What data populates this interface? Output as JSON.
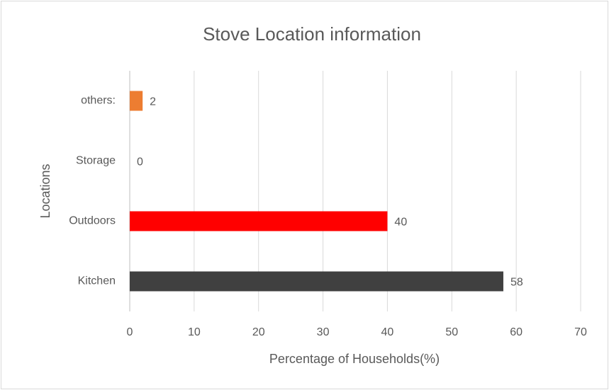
{
  "chart_data": {
    "type": "barh",
    "title": "Stove Location information",
    "categories": [
      "others:",
      "Storage",
      "Outdoors",
      "Kitchen"
    ],
    "values": [
      2,
      0,
      40,
      58
    ],
    "colors": [
      "#ed7d31",
      "#a5a5a5",
      "#ff0000",
      "#404040"
    ],
    "xlabel": "Percentage of Households(%)",
    "ylabel": "Locations",
    "xlim": [
      0,
      70
    ],
    "xticks": [
      0,
      10,
      20,
      30,
      40,
      50,
      60,
      70
    ],
    "grid": true
  }
}
